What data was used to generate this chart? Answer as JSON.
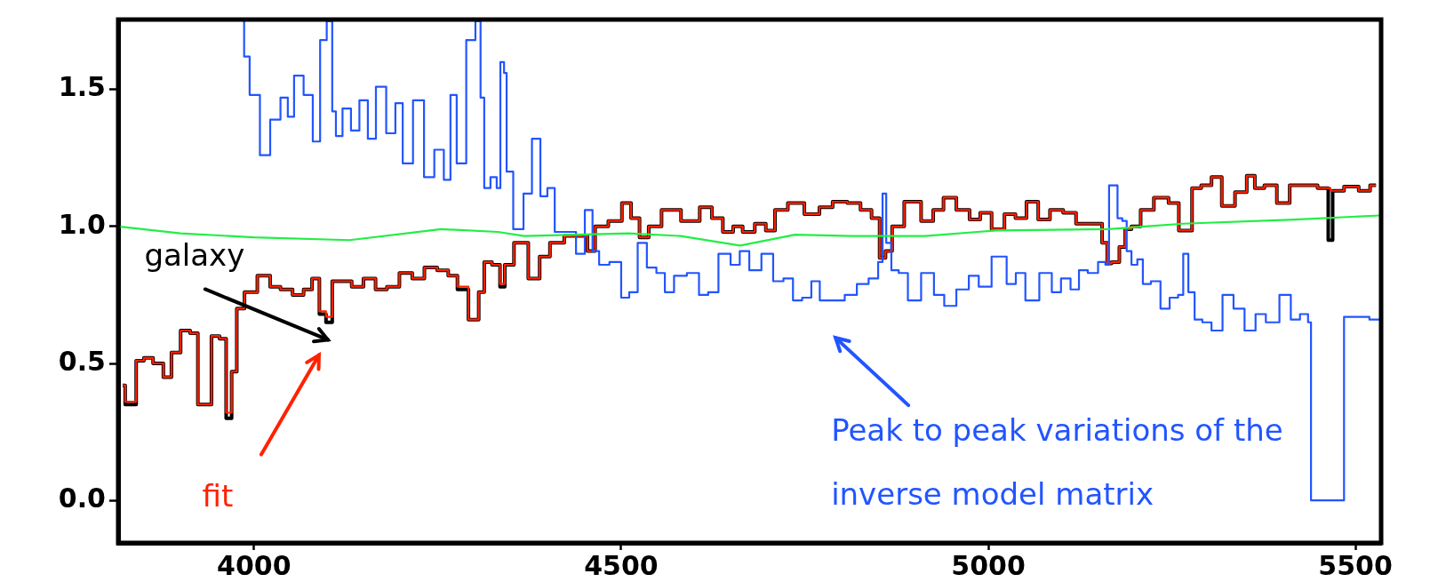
{
  "chart_data": {
    "type": "step",
    "xlim": [
      3815,
      5535
    ],
    "ylim": [
      -0.155,
      1.755
    ],
    "xticks": [
      4000,
      4500,
      5000,
      5500
    ],
    "yticks": [
      {
        "value": 0,
        "label": "0.0"
      },
      {
        "value": 0.5,
        "label": "0.5"
      },
      {
        "value": 1,
        "label": "1.0"
      },
      {
        "value": 1.5,
        "label": "1.5"
      }
    ],
    "grid": false,
    "legend": false,
    "series": [
      {
        "color": "#000000",
        "x": [
          3821,
          3828,
          3835,
          3844,
          3856,
          3869,
          3884,
          3891,
          3909,
          3917,
          3930,
          3935,
          3949,
          3957,
          3967,
          3972,
          3981,
          3993,
          4016,
          4028,
          4044,
          4061,
          4074,
          4084,
          4094,
          4102,
          4111,
          4125,
          4141,
          4157,
          4174,
          4188,
          4208,
          4223,
          4241,
          4258,
          4271,
          4283,
          4301,
          4311,
          4316,
          4332,
          4338,
          4345,
          4363,
          4384,
          4394,
          4412,
          4433,
          4449,
          4459,
          4470,
          4495,
          4507,
          4520,
          4530,
          4545,
          4565,
          4598,
          4616,
          4631,
          4646,
          4659,
          4672,
          4692,
          4702,
          4717,
          4737,
          4762,
          4778,
          4798,
          4818,
          4834,
          4848,
          4856,
          4864,
          4874,
          4897,
          4920,
          4930,
          4948,
          4965,
          4984,
          4994,
          5015,
          5029,
          5045,
          5059,
          5077,
          5091,
          5113,
          5126,
          5149,
          5161,
          5163,
          5173,
          5184,
          5189,
          5201,
          5214,
          5237,
          5254,
          5265,
          5273,
          5282,
          5298,
          5310,
          5326,
          5346,
          5358,
          5368,
          5384,
          5402,
          5419,
          5437,
          5460,
          5466,
          5472,
          5497,
          5512,
          5528
        ],
        "values": [
          0.42,
          0.35,
          0.35,
          0.51,
          0.52,
          0.5,
          0.45,
          0.54,
          0.62,
          0.61,
          0.35,
          0.35,
          0.6,
          0.59,
          0.3,
          0.47,
          0.7,
          0.76,
          0.82,
          0.78,
          0.77,
          0.75,
          0.77,
          0.81,
          0.68,
          0.65,
          0.8,
          0.8,
          0.78,
          0.81,
          0.77,
          0.78,
          0.83,
          0.81,
          0.85,
          0.84,
          0.82,
          0.77,
          0.66,
          0.76,
          0.87,
          0.86,
          0.78,
          0.86,
          0.94,
          0.81,
          0.89,
          0.94,
          0.965,
          0.965,
          0.91,
          1.0,
          1.02,
          1.085,
          1.03,
          0.96,
          1.0,
          1.06,
          1.02,
          1.07,
          1.03,
          0.98,
          1.0,
          0.98,
          1.01,
          0.985,
          1.06,
          1.085,
          1.045,
          1.07,
          1.09,
          1.085,
          1.06,
          1.03,
          0.885,
          0.91,
          1.0,
          1.09,
          1.02,
          1.06,
          1.105,
          1.06,
          1.025,
          1.05,
          0.99,
          1.045,
          1.03,
          1.09,
          1.025,
          1.06,
          1.05,
          1.01,
          1.01,
          0.94,
          0.865,
          0.87,
          0.925,
          0.99,
          1.0,
          1.06,
          1.105,
          1.085,
          0.985,
          0.985,
          1.14,
          1.15,
          1.18,
          1.075,
          1.125,
          1.185,
          1.14,
          1.15,
          1.085,
          1.15,
          1.15,
          1.14,
          0.95,
          1.13,
          1.145,
          1.13,
          1.15
        ]
      },
      {
        "color": "#ff2200",
        "x": [
          3821,
          3828,
          3835,
          3844,
          3856,
          3869,
          3884,
          3891,
          3909,
          3917,
          3930,
          3935,
          3949,
          3957,
          3967,
          3972,
          3981,
          3993,
          4016,
          4028,
          4044,
          4061,
          4074,
          4084,
          4094,
          4102,
          4111,
          4125,
          4141,
          4157,
          4174,
          4188,
          4208,
          4223,
          4241,
          4258,
          4271,
          4283,
          4301,
          4311,
          4316,
          4332,
          4338,
          4345,
          4363,
          4384,
          4394,
          4412,
          4433,
          4449,
          4459,
          4470,
          4495,
          4507,
          4520,
          4530,
          4545,
          4565,
          4598,
          4616,
          4631,
          4646,
          4659,
          4672,
          4692,
          4702,
          4717,
          4737,
          4762,
          4778,
          4798,
          4818,
          4834,
          4848,
          4856,
          4864,
          4874,
          4897,
          4920,
          4930,
          4948,
          4965,
          4984,
          4994,
          5015,
          5029,
          5045,
          5059,
          5077,
          5091,
          5113,
          5126,
          5149,
          5161,
          5163,
          5173,
          5184,
          5189,
          5201,
          5214,
          5237,
          5254,
          5265,
          5273,
          5282,
          5298,
          5310,
          5326,
          5346,
          5358,
          5368,
          5384,
          5402,
          5419,
          5437,
          5460,
          5472,
          5497,
          5512,
          5528
        ],
        "values": [
          0.42,
          0.36,
          0.36,
          0.51,
          0.52,
          0.5,
          0.45,
          0.54,
          0.62,
          0.61,
          0.35,
          0.35,
          0.6,
          0.59,
          0.32,
          0.47,
          0.7,
          0.76,
          0.82,
          0.78,
          0.77,
          0.75,
          0.77,
          0.81,
          0.69,
          0.67,
          0.8,
          0.8,
          0.78,
          0.81,
          0.77,
          0.78,
          0.83,
          0.81,
          0.85,
          0.84,
          0.82,
          0.78,
          0.66,
          0.76,
          0.87,
          0.86,
          0.79,
          0.86,
          0.94,
          0.81,
          0.89,
          0.94,
          0.965,
          0.965,
          0.91,
          1.0,
          1.02,
          1.085,
          1.03,
          0.96,
          1.0,
          1.06,
          1.02,
          1.07,
          1.03,
          0.98,
          1.0,
          0.98,
          1.01,
          0.985,
          1.06,
          1.085,
          1.045,
          1.07,
          1.09,
          1.085,
          1.06,
          1.03,
          0.885,
          0.91,
          1.0,
          1.09,
          1.02,
          1.06,
          1.105,
          1.06,
          1.025,
          1.05,
          0.99,
          1.045,
          1.03,
          1.09,
          1.025,
          1.06,
          1.05,
          1.01,
          1.01,
          0.94,
          0.865,
          0.87,
          0.925,
          0.99,
          1.0,
          1.06,
          1.105,
          1.085,
          0.985,
          0.985,
          1.14,
          1.15,
          1.18,
          1.075,
          1.125,
          1.185,
          1.14,
          1.15,
          1.085,
          1.15,
          1.15,
          1.14,
          1.13,
          1.145,
          1.13,
          1.15
        ]
      },
      {
        "color": "#2255ff",
        "x": [
          3985,
          3988,
          4000,
          4016,
          4028,
          4044,
          4048,
          4061,
          4074,
          4086,
          4094,
          4104,
          4109,
          4114,
          4127,
          4137,
          4150,
          4160,
          4172,
          4188,
          4197,
          4208,
          4225,
          4238,
          4253,
          4264,
          4271,
          4281,
          4297,
          4306,
          4311,
          4316,
          4328,
          4333,
          4338,
          4343,
          4345,
          4361,
          4373,
          4384,
          4396,
          4403,
          4416,
          4433,
          4444,
          4457,
          4465,
          4475,
          4493,
          4507,
          4515,
          4530,
          4540,
          4556,
          4563,
          4581,
          4598,
          4614,
          4623,
          4642,
          4656,
          4667,
          4682,
          4700,
          4714,
          4728,
          4740,
          4753,
          4765,
          4776,
          4795,
          4814,
          4828,
          4846,
          4854,
          4858,
          4864,
          4872,
          4884,
          4897,
          4920,
          4932,
          4948,
          4965,
          4982,
          4992,
          5017,
          5033,
          5042,
          5059,
          5080,
          5093,
          5105,
          5119,
          5128,
          5143,
          5156,
          5163,
          5166,
          5173,
          5179,
          5186,
          5191,
          5199,
          5207,
          5214,
          5229,
          5240,
          5254,
          5263,
          5268,
          5277,
          5285,
          5298,
          5310,
          5328,
          5340,
          5358,
          5370,
          5386,
          5407,
          5417,
          5432,
          5439,
          5440,
          5484,
          5485,
          5505,
          5533
        ],
        "values": [
          1.75,
          1.62,
          1.48,
          1.26,
          1.39,
          1.47,
          1.4,
          1.55,
          1.48,
          1.31,
          1.68,
          1.75,
          1.42,
          1.33,
          1.43,
          1.35,
          1.46,
          1.32,
          1.51,
          1.34,
          1.45,
          1.23,
          1.46,
          1.18,
          1.28,
          1.17,
          1.48,
          1.23,
          1.68,
          1.75,
          1.47,
          1.14,
          1.18,
          1.14,
          1.6,
          1.56,
          1.2,
          0.99,
          1.12,
          1.32,
          1.11,
          1.14,
          0.98,
          0.98,
          0.9,
          1.06,
          0.91,
          0.86,
          0.87,
          0.74,
          0.76,
          0.94,
          0.85,
          0.83,
          0.76,
          0.82,
          0.83,
          0.75,
          0.76,
          0.9,
          0.86,
          0.91,
          0.84,
          0.9,
          0.8,
          0.81,
          0.73,
          0.74,
          0.8,
          0.73,
          0.73,
          0.75,
          0.79,
          0.81,
          0.87,
          1.12,
          0.94,
          0.84,
          0.83,
          0.73,
          0.83,
          0.75,
          0.71,
          0.77,
          0.82,
          0.78,
          0.89,
          0.79,
          0.83,
          0.73,
          0.83,
          0.76,
          0.81,
          0.77,
          0.84,
          0.83,
          0.87,
          0.86,
          1.15,
          1.15,
          1.03,
          1.02,
          0.91,
          0.86,
          0.88,
          0.79,
          0.8,
          0.7,
          0.74,
          0.75,
          0.9,
          0.76,
          0.66,
          0.65,
          0.62,
          0.75,
          0.7,
          0.62,
          0.68,
          0.65,
          0.75,
          0.66,
          0.68,
          0.65,
          0,
          0,
          0.67,
          0.67,
          0.66
        ]
      },
      {
        "type": "line",
        "color": "#22ee44",
        "x": [
          3815,
          3900,
          4000,
          4130,
          4255,
          4332,
          4368,
          4510,
          4581,
          4662,
          4737,
          4814,
          4914,
          4985,
          5012,
          5163,
          5265,
          5417,
          5533
        ],
        "values": [
          1.0,
          0.975,
          0.96,
          0.95,
          0.99,
          0.98,
          0.965,
          0.975,
          0.965,
          0.93,
          0.97,
          0.965,
          0.965,
          0.98,
          0.985,
          0.99,
          1.01,
          1.025,
          1.04
        ]
      }
    ],
    "annotations": [
      "galaxy",
      "fit",
      "Peak to peak variations of the inverse model matrix"
    ]
  }
}
